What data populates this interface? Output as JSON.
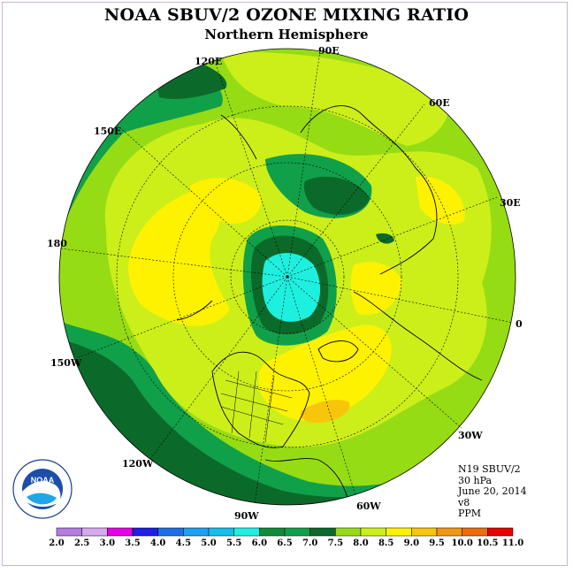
{
  "header": {
    "title": "NOAA SBUV/2 OZONE MIXING RATIO",
    "subtitle": "Northern Hemisphere"
  },
  "longitude_labels": [
    "90E",
    "60E",
    "30E",
    "0",
    "30W",
    "60W",
    "90W",
    "120W",
    "150W",
    "180",
    "150E",
    "120E"
  ],
  "info": {
    "satellite": "N19 SBUV/2",
    "level": "30 hPa",
    "date": "June 20, 2014",
    "version": "v8",
    "units": "PPM"
  },
  "colorbar": {
    "ticks": [
      "2.0",
      "2.5",
      "3.0",
      "3.5",
      "4.0",
      "4.5",
      "5.0",
      "5.5",
      "6.0",
      "6.5",
      "7.0",
      "7.5",
      "8.0",
      "8.5",
      "9.0",
      "9.5",
      "10.0",
      "10.5",
      "11.0"
    ],
    "colors": [
      "#b57be0",
      "#d6a8ee",
      "#e600e6",
      "#1f1fe6",
      "#1e6fe6",
      "#1ea0f0",
      "#14bfea",
      "#1ef0e0",
      "#0e8c3a",
      "#11a04a",
      "#0b6a2a",
      "#96dc14",
      "#ccef1a",
      "#fff200",
      "#f7c60a",
      "#f39612",
      "#ee6b0e",
      "#e60000",
      "#8b5a3c"
    ]
  },
  "map_colors": {
    "c65": "#11a04a",
    "c70": "#0b6a2a",
    "c75": "#96dc14",
    "c80": "#ccef1a",
    "c85": "#fff200",
    "c90": "#f7c60a",
    "c55": "#1ef0e0",
    "c60": "#0e8c3a"
  },
  "logo": {
    "text": "NOAA",
    "ring_text": "NATIONAL OCEANIC AND ATMOSPHERIC ADMINISTRATION · U.S. DEPARTMENT OF COMMERCE"
  }
}
